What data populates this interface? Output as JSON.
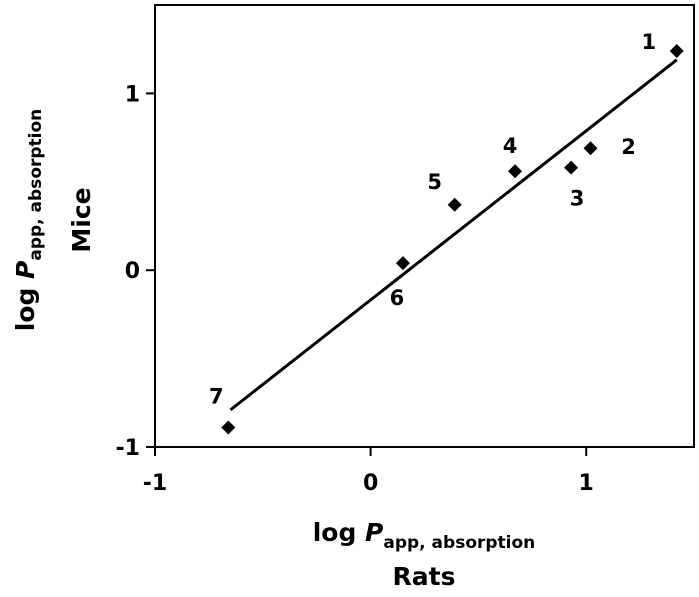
{
  "chart_data": {
    "type": "scatter",
    "xlim": [
      -1,
      1.5
    ],
    "ylim": [
      -1,
      1.5
    ],
    "xticks": [
      -1,
      0,
      1
    ],
    "yticks": [
      -1,
      0,
      1
    ],
    "x_tick_labels": [
      "-1",
      "0",
      "1"
    ],
    "y_tick_labels": [
      "-1",
      "0",
      "1"
    ],
    "grid": false,
    "legend": "none",
    "xlabel": {
      "prefix": "log ",
      "variable": "P",
      "subscript": "app, absorption",
      "species": "Rats"
    },
    "ylabel": {
      "prefix": "log ",
      "variable": "P",
      "subscript": "app, absorption",
      "species": "Mice"
    },
    "points": [
      {
        "label": "1",
        "x": 1.42,
        "y": 1.24
      },
      {
        "label": "2",
        "x": 1.02,
        "y": 0.69
      },
      {
        "label": "3",
        "x": 0.93,
        "y": 0.58
      },
      {
        "label": "4",
        "x": 0.67,
        "y": 0.56
      },
      {
        "label": "5",
        "x": 0.39,
        "y": 0.37
      },
      {
        "label": "6",
        "x": 0.15,
        "y": 0.04
      },
      {
        "label": "7",
        "x": -0.66,
        "y": -0.89
      }
    ],
    "trendline": {
      "x": [
        -0.65,
        1.42
      ],
      "y": [
        -0.79,
        1.19
      ]
    },
    "marker": "diamond",
    "color": "#000000"
  }
}
